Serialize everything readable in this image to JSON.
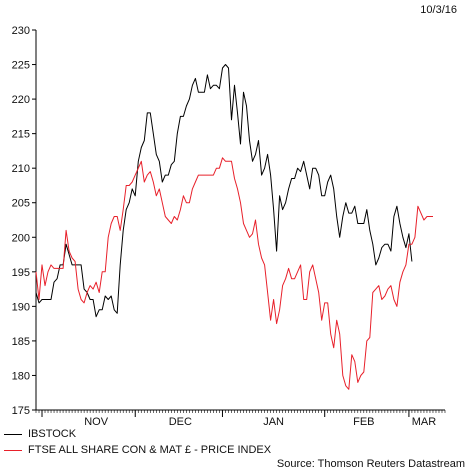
{
  "date_stamp": "10/3/16",
  "source": "Source: Thomson Reuters Datastream",
  "colors": {
    "ibstock": "#000000",
    "ftse": "#e8202a",
    "axis": "#000000"
  },
  "chart_data": {
    "type": "line",
    "title": "",
    "xlabel": "",
    "ylabel": "",
    "ylim": [
      175,
      230
    ],
    "yticks": [
      175,
      180,
      185,
      190,
      195,
      200,
      205,
      210,
      215,
      220,
      225,
      230
    ],
    "x_tick_labels": [
      {
        "label": "NOV",
        "x": 20
      },
      {
        "label": "DEC",
        "x": 48
      },
      {
        "label": "JAN",
        "x": 79
      },
      {
        "label": "FEB",
        "x": 109
      },
      {
        "label": "MAR",
        "x": 129
      }
    ],
    "x_range": [
      0,
      136
    ],
    "legend": [
      "IBSTOCK",
      "FTSE ALL SHARE CON & MAT £ - PRICE INDEX"
    ],
    "series": [
      {
        "name": "IBSTOCK",
        "color": "#000000",
        "values": [
          [
            0,
            192
          ],
          [
            1,
            190.5
          ],
          [
            2,
            191
          ],
          [
            3,
            191
          ],
          [
            4,
            191
          ],
          [
            5,
            191
          ],
          [
            6,
            193.5
          ],
          [
            7,
            194
          ],
          [
            8,
            196
          ],
          [
            9,
            196
          ],
          [
            10,
            199
          ],
          [
            11,
            197.5
          ],
          [
            12,
            196
          ],
          [
            13,
            196
          ],
          [
            14,
            196
          ],
          [
            15,
            196
          ],
          [
            16,
            192.5
          ],
          [
            17,
            192
          ],
          [
            18,
            191
          ],
          [
            19,
            191
          ],
          [
            20,
            188.5
          ],
          [
            21,
            189.5
          ],
          [
            22,
            189.5
          ],
          [
            23,
            191.5
          ],
          [
            24,
            191
          ],
          [
            25,
            191.5
          ],
          [
            26,
            189.5
          ],
          [
            27,
            189
          ],
          [
            28,
            196
          ],
          [
            29,
            201
          ],
          [
            30,
            204
          ],
          [
            31,
            205
          ],
          [
            32,
            207
          ],
          [
            33,
            206
          ],
          [
            34,
            211
          ],
          [
            35,
            213
          ],
          [
            36,
            214
          ],
          [
            37,
            218
          ],
          [
            38,
            218
          ],
          [
            39,
            215
          ],
          [
            40,
            212
          ],
          [
            41,
            211
          ],
          [
            42,
            208
          ],
          [
            43,
            209
          ],
          [
            44,
            209
          ],
          [
            45,
            210.5
          ],
          [
            46,
            211
          ],
          [
            47,
            215
          ],
          [
            48,
            217.5
          ],
          [
            49,
            217.5
          ],
          [
            50,
            219
          ],
          [
            51,
            220
          ],
          [
            52,
            222
          ],
          [
            53,
            223
          ],
          [
            54,
            221
          ],
          [
            55,
            221
          ],
          [
            56,
            221
          ],
          [
            57,
            223.5
          ],
          [
            58,
            221.5
          ],
          [
            59,
            222
          ],
          [
            60,
            222
          ],
          [
            61,
            221.5
          ],
          [
            62,
            224.5
          ],
          [
            63,
            225
          ],
          [
            64,
            224.5
          ],
          [
            65,
            217
          ],
          [
            66,
            222
          ],
          [
            67,
            218
          ],
          [
            68,
            213.5
          ],
          [
            69,
            221
          ],
          [
            70,
            219
          ],
          [
            71,
            214
          ],
          [
            72,
            211
          ],
          [
            73,
            212
          ],
          [
            74,
            214
          ],
          [
            75,
            209
          ],
          [
            76,
            210
          ],
          [
            77,
            212
          ],
          [
            78,
            209
          ],
          [
            79,
            204
          ],
          [
            80,
            198
          ],
          [
            81,
            206
          ],
          [
            82,
            204
          ],
          [
            83,
            205
          ],
          [
            84,
            207
          ],
          [
            85,
            208.5
          ],
          [
            86,
            208.5
          ],
          [
            87,
            210
          ],
          [
            88,
            209.5
          ],
          [
            89,
            211
          ],
          [
            90,
            209
          ],
          [
            91,
            207
          ],
          [
            92,
            210
          ],
          [
            93,
            210
          ],
          [
            94,
            209
          ],
          [
            95,
            206
          ],
          [
            96,
            206
          ],
          [
            97,
            208
          ],
          [
            98,
            209
          ],
          [
            99,
            207
          ],
          [
            100,
            203
          ],
          [
            101,
            200
          ],
          [
            102,
            203
          ],
          [
            103,
            205
          ],
          [
            104,
            203.5
          ],
          [
            105,
            203.5
          ],
          [
            106,
            204.5
          ],
          [
            107,
            202
          ],
          [
            108,
            202
          ],
          [
            109,
            202
          ],
          [
            110,
            204
          ],
          [
            111,
            201
          ],
          [
            112,
            199
          ],
          [
            113,
            196
          ],
          [
            114,
            197
          ],
          [
            115,
            198.5
          ],
          [
            116,
            199
          ],
          [
            117,
            199
          ],
          [
            118,
            198
          ],
          [
            119,
            203
          ],
          [
            120,
            204.5
          ],
          [
            121,
            202
          ],
          [
            122,
            200
          ],
          [
            123,
            198.5
          ],
          [
            124,
            200.5
          ],
          [
            125,
            196.5
          ]
        ]
      },
      {
        "name": "FTSE ALL SHARE CON & MAT £ - PRICE INDEX",
        "color": "#e8202a",
        "values": [
          [
            0,
            195
          ],
          [
            1,
            191
          ],
          [
            2,
            196
          ],
          [
            3,
            193
          ],
          [
            4,
            195
          ],
          [
            5,
            196
          ],
          [
            6,
            195.5
          ],
          [
            7,
            195.5
          ],
          [
            8,
            195.5
          ],
          [
            9,
            195.5
          ],
          [
            10,
            201
          ],
          [
            11,
            198
          ],
          [
            12,
            197
          ],
          [
            13,
            196.5
          ],
          [
            14,
            192.5
          ],
          [
            15,
            191
          ],
          [
            16,
            190.5
          ],
          [
            17,
            192
          ],
          [
            18,
            193
          ],
          [
            19,
            192.5
          ],
          [
            20,
            193.5
          ],
          [
            21,
            192
          ],
          [
            22,
            195
          ],
          [
            23,
            195
          ],
          [
            24,
            200
          ],
          [
            25,
            202
          ],
          [
            26,
            203
          ],
          [
            27,
            203
          ],
          [
            28,
            201
          ],
          [
            29,
            204
          ],
          [
            30,
            207.5
          ],
          [
            31,
            207.5
          ],
          [
            32,
            208
          ],
          [
            33,
            209
          ],
          [
            34,
            210
          ],
          [
            35,
            211
          ],
          [
            36,
            208
          ],
          [
            37,
            209
          ],
          [
            38,
            209.5
          ],
          [
            39,
            208
          ],
          [
            40,
            206
          ],
          [
            41,
            207
          ],
          [
            42,
            205
          ],
          [
            43,
            203
          ],
          [
            44,
            202.5
          ],
          [
            45,
            202
          ],
          [
            46,
            203
          ],
          [
            47,
            202.5
          ],
          [
            48,
            204
          ],
          [
            49,
            206
          ],
          [
            50,
            205
          ],
          [
            51,
            205
          ],
          [
            52,
            207
          ],
          [
            53,
            208
          ],
          [
            54,
            209
          ],
          [
            55,
            209
          ],
          [
            56,
            209
          ],
          [
            57,
            209
          ],
          [
            58,
            209
          ],
          [
            59,
            209
          ],
          [
            60,
            210
          ],
          [
            61,
            210
          ],
          [
            62,
            211.5
          ],
          [
            63,
            211
          ],
          [
            64,
            211
          ],
          [
            65,
            211
          ],
          [
            66,
            208.5
          ],
          [
            67,
            207
          ],
          [
            68,
            205
          ],
          [
            69,
            202
          ],
          [
            70,
            201
          ],
          [
            71,
            200
          ],
          [
            72,
            200.5
          ],
          [
            73,
            202.5
          ],
          [
            74,
            199
          ],
          [
            75,
            197
          ],
          [
            76,
            196
          ],
          [
            77,
            192
          ],
          [
            78,
            188
          ],
          [
            79,
            191
          ],
          [
            80,
            187.5
          ],
          [
            81,
            189.5
          ],
          [
            82,
            193
          ],
          [
            83,
            194
          ],
          [
            84,
            195.5
          ],
          [
            85,
            194
          ],
          [
            86,
            194
          ],
          [
            87,
            195
          ],
          [
            88,
            196
          ],
          [
            89,
            191
          ],
          [
            90,
            191
          ],
          [
            91,
            195
          ],
          [
            92,
            196
          ],
          [
            93,
            194
          ],
          [
            94,
            192
          ],
          [
            95,
            188
          ],
          [
            96,
            190.5
          ],
          [
            97,
            190.5
          ],
          [
            98,
            186
          ],
          [
            99,
            184
          ],
          [
            100,
            188
          ],
          [
            101,
            186
          ],
          [
            102,
            180
          ],
          [
            103,
            178.5
          ],
          [
            104,
            178
          ],
          [
            105,
            183
          ],
          [
            106,
            182
          ],
          [
            107,
            179
          ],
          [
            108,
            180
          ],
          [
            109,
            180.5
          ],
          [
            110,
            185
          ],
          [
            111,
            185.5
          ],
          [
            112,
            192
          ],
          [
            113,
            192.5
          ],
          [
            114,
            193
          ],
          [
            115,
            191
          ],
          [
            116,
            191.5
          ],
          [
            117,
            192.5
          ],
          [
            118,
            193
          ],
          [
            119,
            191
          ],
          [
            120,
            190
          ],
          [
            121,
            193.5
          ],
          [
            122,
            195
          ],
          [
            123,
            196
          ],
          [
            124,
            199
          ],
          [
            125,
            199
          ],
          [
            126,
            200
          ],
          [
            127,
            204.5
          ],
          [
            128,
            203.5
          ],
          [
            129,
            202.5
          ],
          [
            130,
            203
          ],
          [
            131,
            203
          ],
          [
            132,
            203
          ]
        ]
      }
    ]
  }
}
